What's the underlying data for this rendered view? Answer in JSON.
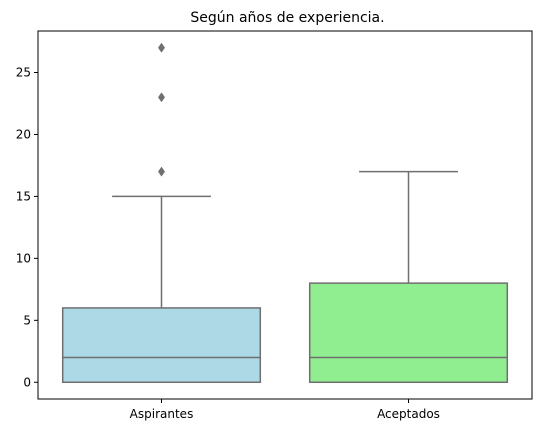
{
  "chart_data": {
    "type": "box",
    "title": "Según años de experiencia.",
    "xlabel": "",
    "ylabel": "",
    "categories": [
      "Aspirantes",
      "Aceptados"
    ],
    "yticks": [
      0,
      5,
      10,
      15,
      20,
      25
    ],
    "ytick_labels": [
      "0",
      "5",
      "10",
      "15",
      "20",
      "25"
    ],
    "ylim": [
      -1.35,
      28.35
    ],
    "grid": false,
    "legend": "none",
    "boxes": [
      {
        "category": "Aspirantes",
        "whisker_low": 0,
        "q1": 0,
        "median": 2,
        "q3": 6,
        "whisker_high": 15,
        "outliers": [
          17,
          23,
          27
        ],
        "color": "#add8e6"
      },
      {
        "category": "Aceptados",
        "whisker_low": 0,
        "q1": 0,
        "median": 2,
        "q3": 8,
        "whisker_high": 17,
        "outliers": [],
        "color": "#90ee90"
      }
    ],
    "line_color": "#6f6f6f"
  }
}
